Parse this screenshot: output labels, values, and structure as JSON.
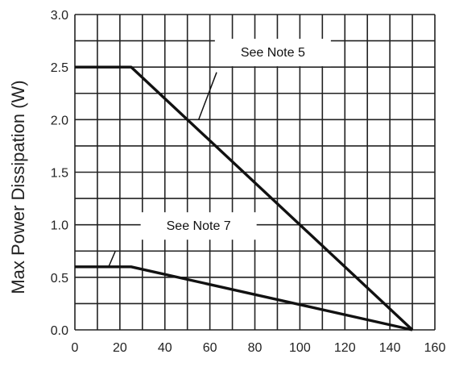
{
  "chart_data": {
    "type": "line",
    "title": "",
    "xlabel": "",
    "ylabel": "Max Power Dissipation (W)",
    "xlim": [
      0,
      160
    ],
    "ylim": [
      0,
      3.0
    ],
    "x_ticks": [
      0,
      20,
      40,
      60,
      80,
      100,
      120,
      140,
      160
    ],
    "x_tick_labels": [
      "0",
      "20",
      "40",
      "60",
      "80",
      "100",
      "120",
      "140",
      "160"
    ],
    "y_ticks": [
      0,
      0.5,
      1.0,
      1.5,
      2.0,
      2.5,
      3.0
    ],
    "y_tick_labels": [
      "0.0",
      "0.5",
      "1.0",
      "1.5",
      "2.0",
      "2.5",
      "3.0"
    ],
    "grid": true,
    "series": [
      {
        "points": [
          [
            0,
            2.5
          ],
          [
            25,
            2.5
          ],
          [
            150,
            0.0
          ]
        ]
      },
      {
        "points": [
          [
            0,
            0.6
          ],
          [
            25,
            0.6
          ],
          [
            150,
            0.0
          ]
        ]
      }
    ],
    "annotations": [
      {
        "text": "See Note 5",
        "target": [
          55,
          2.0
        ],
        "label_at": [
          88,
          2.6
        ],
        "leader_from": [
          63,
          2.45
        ]
      },
      {
        "text": "See Note 7",
        "target": [
          15,
          0.6
        ],
        "label_at": [
          55,
          0.95
        ],
        "leader_from": [
          18,
          0.75
        ]
      }
    ],
    "colors": {
      "line": "#111111",
      "grid": "#222222",
      "text": "#222222"
    }
  }
}
